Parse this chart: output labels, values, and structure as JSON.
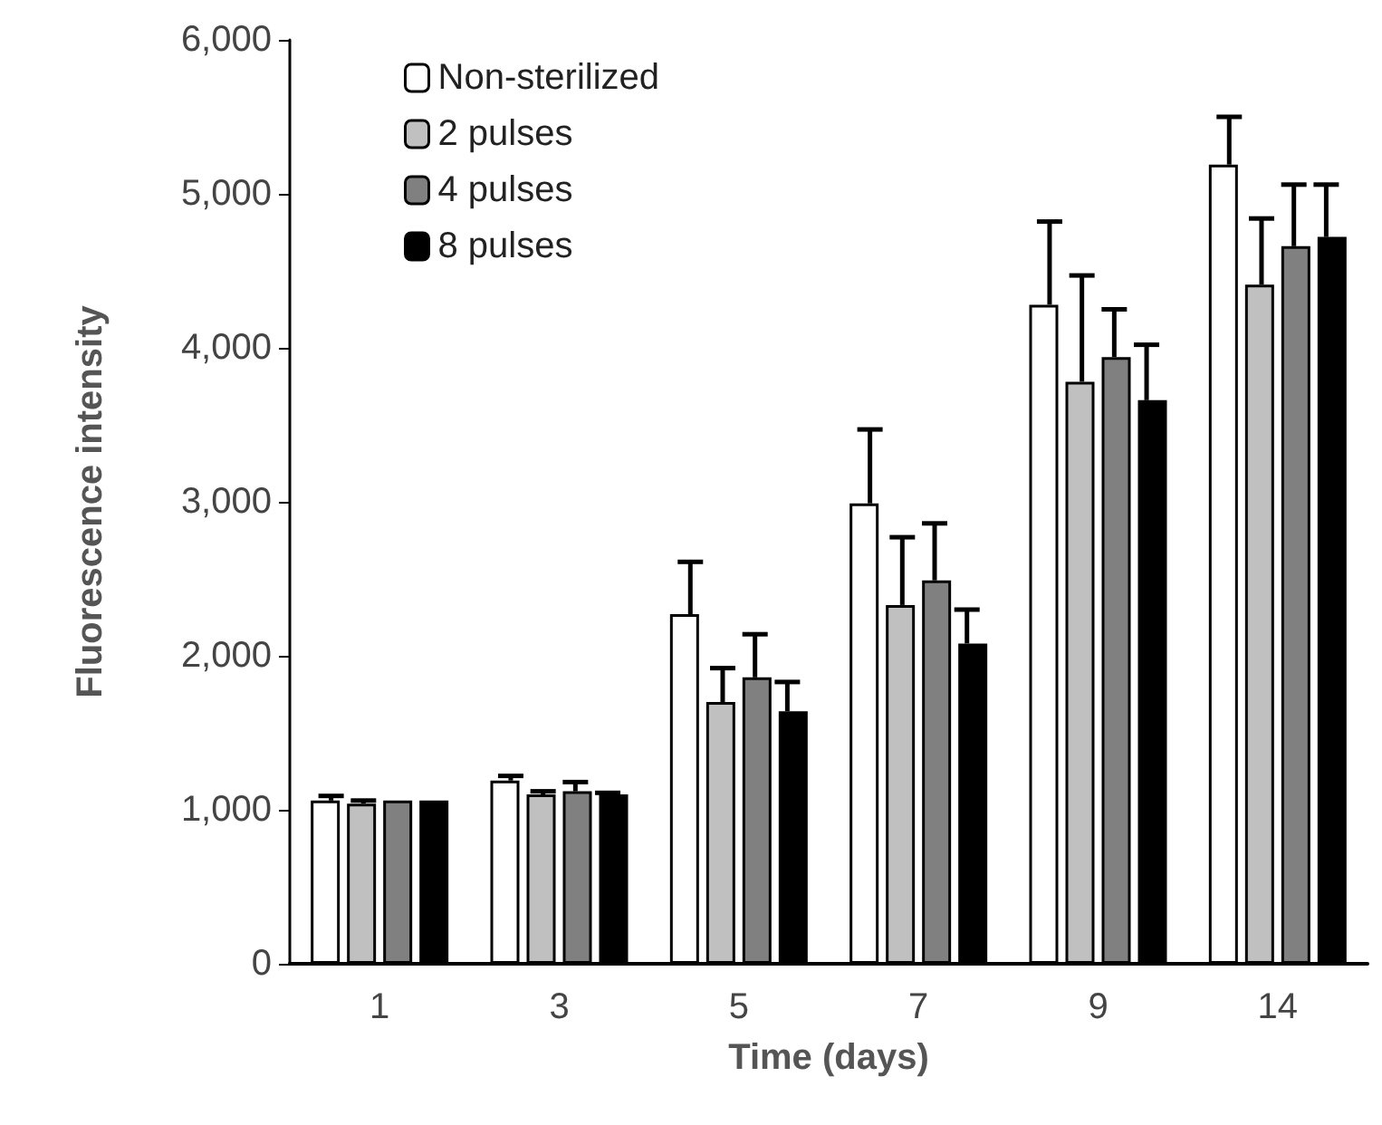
{
  "chart_data": {
    "type": "bar",
    "xlabel": "Time (days)",
    "ylabel": "Fluorescence intensity",
    "categories": [
      "1",
      "3",
      "5",
      "7",
      "9",
      "14"
    ],
    "ylim": [
      0,
      6000
    ],
    "yticks": [
      {
        "value": 0,
        "label": "0"
      },
      {
        "value": 1000,
        "label": "1,000"
      },
      {
        "value": 2000,
        "label": "2,000"
      },
      {
        "value": 3000,
        "label": "3,000"
      },
      {
        "value": 4000,
        "label": "4,000"
      },
      {
        "value": 5000,
        "label": "5,000"
      },
      {
        "value": 6000,
        "label": "6,000"
      }
    ],
    "grid": false,
    "legend": "top left",
    "series": [
      {
        "name": "Non-sterilized",
        "color": "#ffffff",
        "values": [
          1060,
          1190,
          2270,
          2990,
          4280,
          5190
        ],
        "errors": [
          [
            1060,
            1090
          ],
          [
            1190,
            1220
          ],
          [
            2270,
            2610
          ],
          [
            2990,
            3470
          ],
          [
            4280,
            4820
          ],
          [
            5190,
            5500
          ]
        ]
      },
      {
        "name": "2 pulses",
        "color": "#c0c0c0",
        "values": [
          1040,
          1100,
          1700,
          2330,
          3780,
          4410
        ],
        "errors": [
          [
            1040,
            1060
          ],
          [
            1100,
            1120
          ],
          [
            1700,
            1920
          ],
          [
            2330,
            2770
          ],
          [
            3780,
            4470
          ],
          [
            4410,
            4840
          ]
        ]
      },
      {
        "name": "4 pulses",
        "color": "#808080",
        "values": [
          1060,
          1120,
          1860,
          2490,
          3940,
          4660
        ],
        "errors": [
          null,
          [
            1120,
            1180
          ],
          [
            1860,
            2140
          ],
          [
            2490,
            2860
          ],
          [
            3940,
            4250
          ],
          [
            4660,
            5060
          ]
        ]
      },
      {
        "name": "8 pulses",
        "color": "#000000",
        "values": [
          1060,
          1100,
          1640,
          2080,
          3660,
          4720
        ],
        "errors": [
          null,
          [
            1100,
            1110
          ],
          [
            1640,
            1830
          ],
          [
            2080,
            2300
          ],
          [
            3660,
            4020
          ],
          [
            4720,
            5060
          ]
        ]
      }
    ]
  }
}
